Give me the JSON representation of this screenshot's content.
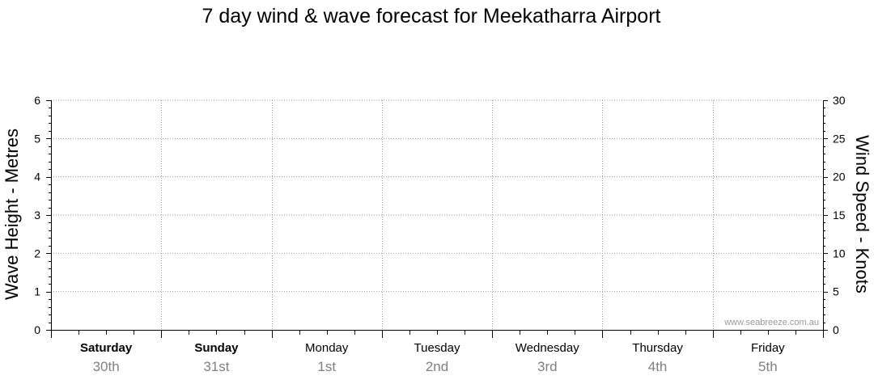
{
  "chart_data": {
    "type": "line",
    "title": "7 day wind & wave forecast for Meekatharra Airport",
    "ylabel_left": "Wave Height - Metres",
    "ylabel_right": "Wind Speed - Knots",
    "ylim_left": [
      0,
      6
    ],
    "ylim_right": [
      0,
      30
    ],
    "yticks_left": [
      "0",
      "1",
      "2",
      "3",
      "4",
      "5",
      "6"
    ],
    "yticks_right": [
      "0",
      "5",
      "10",
      "15",
      "20",
      "25",
      "30"
    ],
    "grid": true,
    "days": [
      {
        "name": "Saturday",
        "date": "30th",
        "bold": true
      },
      {
        "name": "Sunday",
        "date": "31st",
        "bold": true
      },
      {
        "name": "Monday",
        "date": "1st",
        "bold": false
      },
      {
        "name": "Tuesday",
        "date": "2nd",
        "bold": false
      },
      {
        "name": "Wednesday",
        "date": "3rd",
        "bold": false
      },
      {
        "name": "Thursday",
        "date": "4th",
        "bold": false
      },
      {
        "name": "Friday",
        "date": "5th",
        "bold": false
      }
    ],
    "series": [],
    "watermark": "www.seabreeze.com.au"
  }
}
